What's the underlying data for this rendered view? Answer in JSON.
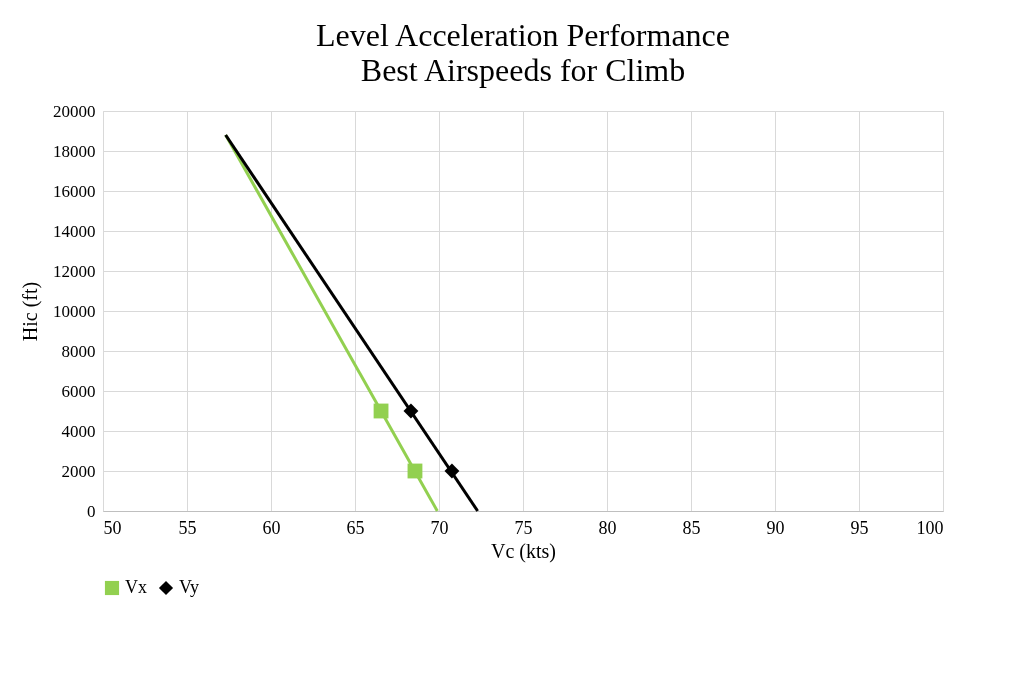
{
  "chart_data": {
    "type": "scatter",
    "title": "Level Acceleration Performance",
    "subtitle": "Best Airspeeds for Climb",
    "xlabel": "Vc (kts)",
    "ylabel": "Hic (ft)",
    "xlim": [
      50,
      100
    ],
    "xticks": [
      50,
      55,
      60,
      65,
      70,
      75,
      80,
      85,
      90,
      95,
      100
    ],
    "ylim": [
      0,
      20000
    ],
    "yticks": [
      0,
      2000,
      4000,
      6000,
      8000,
      10000,
      12000,
      14000,
      16000,
      18000,
      20000
    ],
    "grid": true,
    "legend": "bottom",
    "series": [
      {
        "name": "Vx",
        "marker": "square",
        "color": "#92d050",
        "x": [
          66.55,
          68.57
        ],
        "values": [
          5000,
          2000
        ]
      },
      {
        "name": "Vy",
        "marker": "diamond",
        "color": "#000000",
        "x": [
          68.33,
          70.77
        ],
        "values": [
          5000,
          2000
        ]
      },
      {
        "type": "line",
        "color": "#92d050",
        "x": [
          57.3,
          69.9
        ],
        "values": [
          18800,
          0
        ]
      },
      {
        "type": "line",
        "color": "#000000",
        "x": [
          57.3,
          72.3
        ],
        "values": [
          18800,
          0
        ]
      }
    ]
  }
}
